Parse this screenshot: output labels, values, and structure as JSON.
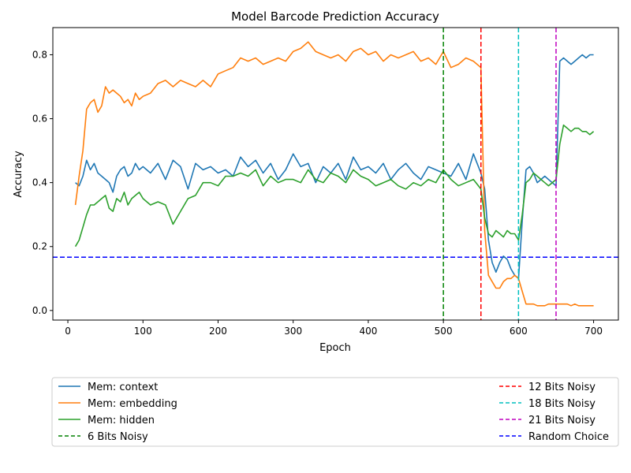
{
  "chart_data": {
    "type": "line",
    "title": "Model Barcode Prediction Accuracy",
    "xlabel": "Epoch",
    "ylabel": "Accuracy",
    "xlim": [
      -20,
      733
    ],
    "ylim": [
      -0.03,
      0.885
    ],
    "xticks": [
      0,
      100,
      200,
      300,
      400,
      500,
      600,
      700
    ],
    "yticks": [
      0.0,
      0.2,
      0.4,
      0.6,
      0.8
    ],
    "grid": false,
    "legend_placement": "below-plot",
    "series": [
      {
        "name": "Mem: context",
        "color": "#1f77b4",
        "x": [
          10,
          15,
          20,
          25,
          30,
          35,
          40,
          45,
          50,
          55,
          60,
          65,
          70,
          75,
          80,
          85,
          90,
          95,
          100,
          110,
          120,
          130,
          140,
          150,
          160,
          170,
          180,
          190,
          200,
          210,
          220,
          230,
          240,
          250,
          260,
          270,
          280,
          290,
          300,
          310,
          320,
          330,
          340,
          350,
          360,
          370,
          380,
          390,
          400,
          410,
          420,
          430,
          440,
          450,
          460,
          470,
          480,
          490,
          500,
          510,
          520,
          530,
          540,
          550,
          555,
          560,
          565,
          570,
          575,
          580,
          585,
          590,
          595,
          600,
          605,
          610,
          615,
          620,
          625,
          630,
          635,
          640,
          645,
          650,
          655,
          660,
          665,
          670,
          675,
          680,
          685,
          690,
          695,
          700
        ],
        "y": [
          0.4,
          0.39,
          0.42,
          0.47,
          0.44,
          0.46,
          0.43,
          0.42,
          0.41,
          0.4,
          0.37,
          0.42,
          0.44,
          0.45,
          0.42,
          0.43,
          0.46,
          0.44,
          0.45,
          0.43,
          0.46,
          0.41,
          0.47,
          0.45,
          0.38,
          0.46,
          0.44,
          0.45,
          0.43,
          0.44,
          0.42,
          0.48,
          0.45,
          0.47,
          0.43,
          0.46,
          0.41,
          0.44,
          0.49,
          0.45,
          0.46,
          0.4,
          0.45,
          0.43,
          0.46,
          0.41,
          0.48,
          0.44,
          0.45,
          0.43,
          0.46,
          0.41,
          0.44,
          0.46,
          0.43,
          0.41,
          0.45,
          0.44,
          0.43,
          0.42,
          0.46,
          0.41,
          0.49,
          0.43,
          0.38,
          0.22,
          0.15,
          0.12,
          0.15,
          0.17,
          0.16,
          0.13,
          0.11,
          0.1,
          0.28,
          0.44,
          0.45,
          0.43,
          0.4,
          0.41,
          0.42,
          0.41,
          0.4,
          0.39,
          0.78,
          0.79,
          0.78,
          0.77,
          0.78,
          0.79,
          0.8,
          0.79,
          0.8,
          0.8
        ]
      },
      {
        "name": "Mem: embedding",
        "color": "#ff7f0e",
        "x": [
          10,
          15,
          20,
          25,
          30,
          35,
          40,
          45,
          50,
          55,
          60,
          65,
          70,
          75,
          80,
          85,
          90,
          95,
          100,
          110,
          120,
          130,
          140,
          150,
          160,
          170,
          180,
          190,
          200,
          210,
          220,
          230,
          240,
          250,
          260,
          270,
          280,
          290,
          300,
          310,
          320,
          330,
          340,
          350,
          360,
          370,
          380,
          390,
          400,
          410,
          420,
          430,
          440,
          450,
          460,
          470,
          480,
          490,
          500,
          510,
          520,
          530,
          540,
          550,
          555,
          560,
          565,
          570,
          575,
          580,
          585,
          590,
          595,
          600,
          605,
          610,
          615,
          620,
          625,
          630,
          635,
          640,
          645,
          650,
          655,
          660,
          665,
          670,
          675,
          680,
          685,
          690,
          695,
          700
        ],
        "y": [
          0.33,
          0.42,
          0.5,
          0.63,
          0.65,
          0.66,
          0.62,
          0.64,
          0.7,
          0.68,
          0.69,
          0.68,
          0.67,
          0.65,
          0.66,
          0.64,
          0.68,
          0.66,
          0.67,
          0.68,
          0.71,
          0.72,
          0.7,
          0.72,
          0.71,
          0.7,
          0.72,
          0.7,
          0.74,
          0.75,
          0.76,
          0.79,
          0.78,
          0.79,
          0.77,
          0.78,
          0.79,
          0.78,
          0.81,
          0.82,
          0.84,
          0.81,
          0.8,
          0.79,
          0.8,
          0.78,
          0.81,
          0.82,
          0.8,
          0.81,
          0.78,
          0.8,
          0.79,
          0.8,
          0.81,
          0.78,
          0.79,
          0.77,
          0.81,
          0.76,
          0.77,
          0.79,
          0.78,
          0.76,
          0.25,
          0.11,
          0.09,
          0.07,
          0.07,
          0.09,
          0.1,
          0.1,
          0.11,
          0.1,
          0.06,
          0.02,
          0.02,
          0.02,
          0.015,
          0.015,
          0.015,
          0.02,
          0.02,
          0.02,
          0.02,
          0.02,
          0.02,
          0.015,
          0.02,
          0.015,
          0.015,
          0.015,
          0.015,
          0.015
        ]
      },
      {
        "name": "Mem: hidden",
        "color": "#2ca02c",
        "x": [
          10,
          15,
          20,
          25,
          30,
          35,
          40,
          45,
          50,
          55,
          60,
          65,
          70,
          75,
          80,
          85,
          90,
          95,
          100,
          110,
          120,
          130,
          140,
          150,
          160,
          170,
          180,
          190,
          200,
          210,
          220,
          230,
          240,
          250,
          260,
          270,
          280,
          290,
          300,
          310,
          320,
          330,
          340,
          350,
          360,
          370,
          380,
          390,
          400,
          410,
          420,
          430,
          440,
          450,
          460,
          470,
          480,
          490,
          500,
          510,
          520,
          530,
          540,
          550,
          555,
          560,
          565,
          570,
          575,
          580,
          585,
          590,
          595,
          600,
          605,
          610,
          615,
          620,
          625,
          630,
          635,
          640,
          645,
          650,
          655,
          660,
          665,
          670,
          675,
          680,
          685,
          690,
          695,
          700
        ],
        "y": [
          0.2,
          0.22,
          0.26,
          0.3,
          0.33,
          0.33,
          0.34,
          0.35,
          0.36,
          0.32,
          0.31,
          0.35,
          0.34,
          0.37,
          0.33,
          0.35,
          0.36,
          0.37,
          0.35,
          0.33,
          0.34,
          0.33,
          0.27,
          0.31,
          0.35,
          0.36,
          0.4,
          0.4,
          0.39,
          0.42,
          0.42,
          0.43,
          0.42,
          0.44,
          0.39,
          0.42,
          0.4,
          0.41,
          0.41,
          0.4,
          0.44,
          0.41,
          0.4,
          0.43,
          0.42,
          0.4,
          0.44,
          0.42,
          0.41,
          0.39,
          0.4,
          0.41,
          0.39,
          0.38,
          0.4,
          0.39,
          0.41,
          0.4,
          0.44,
          0.41,
          0.39,
          0.4,
          0.41,
          0.38,
          0.29,
          0.24,
          0.23,
          0.25,
          0.24,
          0.23,
          0.25,
          0.24,
          0.24,
          0.22,
          0.3,
          0.4,
          0.41,
          0.43,
          0.42,
          0.41,
          0.4,
          0.39,
          0.4,
          0.41,
          0.52,
          0.58,
          0.57,
          0.56,
          0.57,
          0.57,
          0.56,
          0.56,
          0.55,
          0.56
        ]
      }
    ],
    "vlines": [
      {
        "name": "6 Bits Noisy",
        "x": 500,
        "color": "#008000"
      },
      {
        "name": "12 Bits Noisy",
        "x": 550,
        "color": "#ff0000"
      },
      {
        "name": "18 Bits Noisy",
        "x": 600,
        "color": "#00bfbf"
      },
      {
        "name": "21 Bits Noisy",
        "x": 650,
        "color": "#bf00bf"
      }
    ],
    "hlines": [
      {
        "name": "Random Choice",
        "y": 0.1667,
        "color": "#0000ff"
      }
    ],
    "legend_entries": [
      {
        "label": "Mem: context",
        "color": "#1f77b4",
        "style": "solid"
      },
      {
        "label": "Mem: embedding",
        "color": "#ff7f0e",
        "style": "solid"
      },
      {
        "label": "Mem: hidden",
        "color": "#2ca02c",
        "style": "solid"
      },
      {
        "label": "6 Bits Noisy",
        "color": "#008000",
        "style": "dashed"
      },
      {
        "label": "12 Bits Noisy",
        "color": "#ff0000",
        "style": "dashed"
      },
      {
        "label": "18 Bits Noisy",
        "color": "#00bfbf",
        "style": "dashed"
      },
      {
        "label": "21 Bits Noisy",
        "color": "#bf00bf",
        "style": "dashed"
      },
      {
        "label": "Random Choice",
        "color": "#0000ff",
        "style": "dashed"
      }
    ]
  }
}
